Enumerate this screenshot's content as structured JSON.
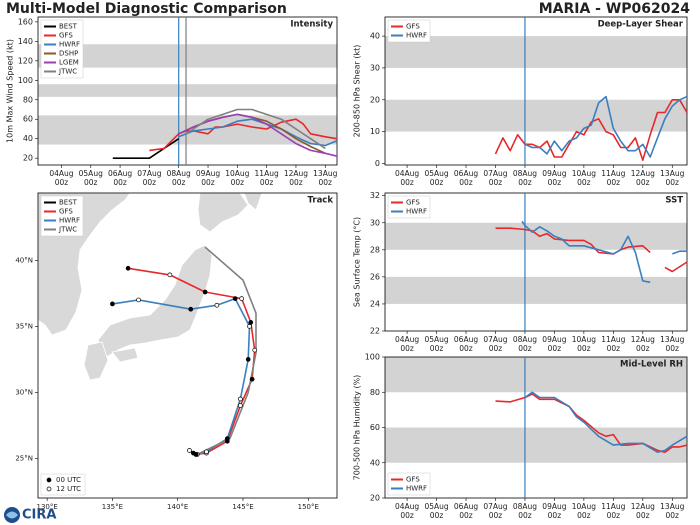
{
  "title": "Multi-Model Diagnostic Comparison",
  "storm": "MARIA - WP062024",
  "logo": "CIRA",
  "chart_data": [
    {
      "type": "line",
      "title": "Intensity",
      "ylabel": "10m Max Wind Speed (kt)",
      "legend": "upper left",
      "xlim": [
        3.2,
        13.4
      ],
      "ylim": [
        13,
        165
      ],
      "xticks": [
        {
          "value": 4,
          "label": "04Aug 00z"
        },
        {
          "value": 5,
          "label": "05Aug 00z"
        },
        {
          "value": 6,
          "label": "06Aug 00z"
        },
        {
          "value": 7,
          "label": "07Aug 00z"
        },
        {
          "value": 8,
          "label": "08Aug 00z"
        },
        {
          "value": 9,
          "label": "09Aug 00z"
        },
        {
          "value": 10,
          "label": "10Aug 00z"
        },
        {
          "value": 11,
          "label": "11Aug 00z"
        },
        {
          "value": 12,
          "label": "12Aug 00z"
        },
        {
          "value": 13,
          "label": "13Aug 00z"
        }
      ],
      "yticks": [
        20,
        40,
        60,
        80,
        100,
        120,
        140,
        160
      ],
      "bands": [
        [
          34,
          64
        ],
        [
          83,
          96
        ],
        [
          113,
          137
        ]
      ],
      "vlines": [
        {
          "value": 8,
          "color": "#3a7fbf"
        },
        {
          "value": 8.25,
          "color": "#808080"
        }
      ],
      "series": [
        {
          "name": "BEST",
          "color": "#000000",
          "x": [
            5.75,
            6,
            6.5,
            7,
            7.25,
            7.5,
            7.75,
            8
          ],
          "values": [
            20,
            20,
            20,
            20,
            25,
            30,
            35,
            40
          ]
        },
        {
          "name": "GFS",
          "color": "#e8282b",
          "x": [
            7,
            7.5,
            8,
            8.25,
            8.5,
            9,
            9.25,
            9.5,
            10,
            10.5,
            11,
            11.5,
            12,
            12.25,
            12.5,
            13,
            13.4
          ],
          "values": [
            28,
            30,
            45,
            48,
            48,
            45,
            52,
            52,
            55,
            52,
            50,
            57,
            60,
            55,
            45,
            42,
            40
          ]
        },
        {
          "name": "HWRF",
          "color": "#3a7fbf",
          "x": [
            8,
            8.5,
            9,
            9.5,
            10,
            10.5,
            11,
            11.5,
            12,
            12.5,
            13,
            13.4
          ],
          "values": [
            42,
            48,
            50,
            52,
            58,
            60,
            55,
            50,
            42,
            35,
            33,
            38
          ]
        },
        {
          "name": "DSHP",
          "color": "#8b5a2b",
          "x": [
            8,
            8.5,
            9,
            9.5,
            10,
            10.5,
            11,
            11.5,
            12,
            12.5,
            13
          ],
          "values": [
            45,
            52,
            58,
            62,
            65,
            62,
            58,
            50,
            40,
            32,
            25
          ]
        },
        {
          "name": "LGEM",
          "color": "#9b3fb5",
          "x": [
            8,
            8.5,
            9,
            9.5,
            10,
            10.5,
            11,
            11.5,
            12,
            12.5,
            13,
            13.4
          ],
          "values": [
            45,
            52,
            58,
            62,
            65,
            62,
            55,
            45,
            35,
            28,
            25,
            22
          ]
        },
        {
          "name": "JTWC",
          "color": "#808080",
          "x": [
            8.25,
            8.5,
            9,
            9.5,
            10,
            10.5,
            11,
            11.5,
            12,
            12.5,
            13
          ],
          "values": [
            45,
            50,
            60,
            65,
            70,
            70,
            65,
            60,
            50,
            40,
            30
          ]
        }
      ]
    },
    {
      "type": "line",
      "title": "Deep-Layer Shear",
      "ylabel": "200-850 hPa Shear (kt)",
      "legend": "upper left",
      "xlim": [
        3.25,
        13.5
      ],
      "ylim": [
        -0.5,
        46
      ],
      "xticks": [
        {
          "value": 4,
          "label": "04Aug 00z"
        },
        {
          "value": 5,
          "label": "05Aug 00z"
        },
        {
          "value": 6,
          "label": "06Aug 00z"
        },
        {
          "value": 7,
          "label": "07Aug 00z"
        },
        {
          "value": 8,
          "label": "08Aug 00z"
        },
        {
          "value": 9,
          "label": "09Aug 00z"
        },
        {
          "value": 10,
          "label": "10Aug 00z"
        },
        {
          "value": 11,
          "label": "11Aug 00z"
        },
        {
          "value": 12,
          "label": "12Aug 00z"
        },
        {
          "value": 13,
          "label": "13Aug 00z"
        }
      ],
      "yticks": [
        0,
        10,
        20,
        30,
        40
      ],
      "bands": [
        [
          10,
          20
        ],
        [
          30,
          40
        ]
      ],
      "vlines": [
        {
          "value": 8,
          "color": "#3a7fbf"
        }
      ],
      "series": [
        {
          "name": "GFS",
          "color": "#e8282b",
          "x": [
            7,
            7.25,
            7.5,
            7.75,
            8,
            8.25,
            8.5,
            8.75,
            9,
            9.25,
            9.5,
            9.75,
            10,
            10.25,
            10.5,
            10.75,
            11,
            11.25,
            11.5,
            11.75,
            12,
            12.25,
            12.5,
            12.75,
            13,
            13.25,
            13.5
          ],
          "values": [
            3,
            8,
            4,
            9,
            6,
            6,
            5,
            7,
            2,
            2,
            6,
            10,
            9,
            13,
            14,
            10,
            9,
            5,
            5,
            8,
            1,
            9,
            16,
            16,
            20,
            20,
            16
          ]
        },
        {
          "name": "HWRF",
          "color": "#3a7fbf",
          "x": [
            8,
            8.25,
            8.5,
            8.75,
            9,
            9.25,
            9.5,
            9.75,
            10,
            10.25,
            10.5,
            10.75,
            11,
            11.25,
            11.5,
            11.75,
            12,
            12.25,
            12.5,
            12.75,
            13,
            13.25,
            13.5
          ],
          "values": [
            6,
            5,
            5,
            3,
            7,
            4,
            7,
            8,
            11,
            12,
            19,
            21,
            11,
            7,
            4,
            4,
            6,
            2,
            8,
            14,
            18,
            20,
            21
          ]
        }
      ]
    },
    {
      "type": "track",
      "title": "Track",
      "legend": "upper left",
      "xlim": [
        129.3,
        152.2
      ],
      "ylim": [
        22,
        45.1
      ],
      "xticks": [
        {
          "value": 130,
          "label": "130°E"
        },
        {
          "value": 135,
          "label": "135°E"
        },
        {
          "value": 140,
          "label": "140°E"
        },
        {
          "value": 145,
          "label": "145°E"
        },
        {
          "value": 150,
          "label": "150°E"
        }
      ],
      "yticks": [
        {
          "value": 25,
          "label": "25°N"
        },
        {
          "value": 30,
          "label": "30°N"
        },
        {
          "value": 35,
          "label": "35°N"
        },
        {
          "value": 40,
          "label": "40°N"
        }
      ],
      "marker_legend": [
        "00 UTC",
        "12 UTC"
      ],
      "series": [
        {
          "name": "BEST",
          "color": "#000000",
          "markers": true,
          "x": [
            140.9,
            141.2,
            141.5
          ],
          "values": [
            25.6,
            25.4,
            25.3
          ]
        },
        {
          "name": "GFS",
          "color": "#e8282b",
          "markers": true,
          "x": [
            141.4,
            142.2,
            143.8,
            144.8,
            145.7,
            145.9,
            145.6,
            144.9,
            142.1,
            139.4,
            136.2
          ],
          "values": [
            25.3,
            25.4,
            26.3,
            29.0,
            31.0,
            33.2,
            35.3,
            37.1,
            37.6,
            38.9,
            39.4
          ]
        },
        {
          "name": "HWRF",
          "color": "#3a7fbf",
          "markers": true,
          "x": [
            141.4,
            142.2,
            143.8,
            144.8,
            145.4,
            145.5,
            144.4,
            143.0,
            141.0,
            137.0,
            135.0
          ],
          "values": [
            25.3,
            25.5,
            26.5,
            29.5,
            32.5,
            35.0,
            37.1,
            36.6,
            36.3,
            37.0,
            36.7
          ]
        },
        {
          "name": "JTWC",
          "color": "#808080",
          "markers": false,
          "x": [
            141.5,
            144.0,
            145.4,
            146.0,
            146.0,
            145.0,
            142.1
          ],
          "values": [
            25.3,
            26.5,
            30.0,
            33.0,
            36.0,
            38.5,
            41.0
          ]
        }
      ]
    },
    {
      "type": "line",
      "title": "SST",
      "ylabel": "Sea Surface Temp (°C)",
      "legend": "upper left",
      "xlim": [
        3.25,
        13.5
      ],
      "ylim": [
        22,
        32.2
      ],
      "xticks": [
        {
          "value": 4,
          "label": "04Aug 00z"
        },
        {
          "value": 5,
          "label": "05Aug 00z"
        },
        {
          "value": 6,
          "label": "06Aug 00z"
        },
        {
          "value": 7,
          "label": "07Aug 00z"
        },
        {
          "value": 8,
          "label": "08Aug 00z"
        },
        {
          "value": 9,
          "label": "09Aug 00z"
        },
        {
          "value": 10,
          "label": "10Aug 00z"
        },
        {
          "value": 11,
          "label": "11Aug 00z"
        },
        {
          "value": 12,
          "label": "12Aug 00z"
        },
        {
          "value": 13,
          "label": "13Aug 00z"
        }
      ],
      "yticks": [
        22,
        24,
        26,
        28,
        30,
        32
      ],
      "bands": [
        [
          24,
          26
        ],
        [
          28,
          30
        ]
      ],
      "vlines": [
        {
          "value": 8,
          "color": "#3a7fbf"
        }
      ],
      "series": [
        {
          "name": "GFS",
          "color": "#e8282b",
          "x": [
            7,
            7.5,
            8,
            8.25,
            8.5,
            8.75,
            9,
            9.5,
            10,
            10.25,
            10.5,
            11,
            11.25,
            11.5,
            12,
            12.25,
            12.5,
            12.75,
            13,
            13.5
          ],
          "values": [
            29.6,
            29.6,
            29.5,
            29.4,
            29.0,
            29.2,
            28.8,
            28.7,
            28.7,
            28.4,
            27.8,
            27.7,
            28.0,
            28.2,
            28.3,
            27.8,
            null,
            26.7,
            26.4,
            27.1
          ]
        },
        {
          "name": "HWRF",
          "color": "#3a7fbf",
          "x": [
            7.9,
            8,
            8.25,
            8.5,
            8.75,
            9,
            9.25,
            9.5,
            10,
            10.5,
            11,
            11.25,
            11.5,
            11.75,
            12,
            12.25,
            12.5,
            13,
            13.25,
            13.5
          ],
          "values": [
            30.1,
            29.8,
            29.3,
            29.7,
            29.4,
            29.0,
            28.8,
            28.3,
            28.3,
            28.0,
            27.7,
            28.0,
            29.0,
            27.8,
            25.7,
            25.6,
            null,
            27.7,
            27.9,
            27.9
          ]
        }
      ]
    },
    {
      "type": "line",
      "title": "Mid-Level RH",
      "ylabel": "700-500 hPa Humidity (%)",
      "legend": "lower left",
      "xlim": [
        3.25,
        13.5
      ],
      "ylim": [
        20,
        100
      ],
      "xticks": [
        {
          "value": 4,
          "label": "04Aug 00z"
        },
        {
          "value": 5,
          "label": "05Aug 00z"
        },
        {
          "value": 6,
          "label": "06Aug 00z"
        },
        {
          "value": 7,
          "label": "07Aug 00z"
        },
        {
          "value": 8,
          "label": "08Aug 00z"
        },
        {
          "value": 9,
          "label": "09Aug 00z"
        },
        {
          "value": 10,
          "label": "10Aug 00z"
        },
        {
          "value": 11,
          "label": "11Aug 00z"
        },
        {
          "value": 12,
          "label": "12Aug 00z"
        },
        {
          "value": 13,
          "label": "13Aug 00z"
        }
      ],
      "yticks": [
        20,
        40,
        60,
        80,
        100
      ],
      "bands": [
        [
          40,
          60
        ],
        [
          80,
          100
        ]
      ],
      "vlines": [
        {
          "value": 8,
          "color": "#3a7fbf"
        }
      ],
      "series": [
        {
          "name": "GFS",
          "color": "#e8282b",
          "x": [
            7,
            7.5,
            8,
            8.25,
            8.5,
            9,
            9.5,
            9.75,
            10,
            10.5,
            10.75,
            11,
            11.25,
            11.5,
            12,
            12.5,
            12.75,
            13,
            13.25,
            13.5
          ],
          "values": [
            75,
            74.5,
            77,
            79,
            76,
            76,
            72,
            67,
            64,
            57,
            55,
            56,
            50,
            50,
            51,
            47,
            46,
            49,
            49,
            50
          ]
        },
        {
          "name": "HWRF",
          "color": "#3a7fbf",
          "x": [
            8,
            8.25,
            8.5,
            9,
            9.5,
            9.75,
            10,
            10.5,
            11,
            11.5,
            12,
            12.5,
            12.75,
            13,
            13.5
          ],
          "values": [
            77,
            80,
            77,
            77,
            72,
            66,
            63,
            55,
            50,
            51,
            51,
            46,
            47,
            50,
            55
          ]
        }
      ]
    }
  ]
}
